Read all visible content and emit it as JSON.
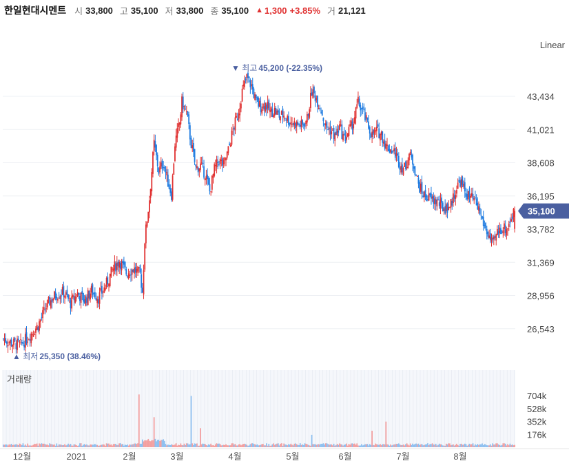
{
  "header": {
    "name": "한일현대시멘트",
    "open_label": "시",
    "open": "33,800",
    "high_label": "고",
    "high": "35,100",
    "low_label": "저",
    "low": "33,800",
    "close_label": "종",
    "close": "35,100",
    "change_icon": "triangle-up-icon",
    "change": "1,300",
    "change_pct": "+3.85%",
    "volume_label": "거",
    "volume": "21,121"
  },
  "scale_mode": "Linear",
  "colors": {
    "up": "#e03131",
    "down": "#1e7be0",
    "badge": "#4a5fa0",
    "grid": "#eef0f4"
  },
  "chart_data": {
    "type": "candlestick",
    "price_axis": {
      "ticks": [
        26543,
        28956,
        31369,
        33782,
        36195,
        38608,
        41021,
        43434
      ],
      "range": [
        25000,
        47500
      ],
      "grid": true,
      "side": "right"
    },
    "current_price_label": "35,100",
    "annotations": {
      "high": {
        "prefix": "최고",
        "text": "45,200 (-22.35%)",
        "price": 45200,
        "icon": "triangle-down-icon"
      },
      "low": {
        "prefix": "최저",
        "text": "25,350 (38.46%)",
        "price": 25350,
        "icon": "triangle-up-icon"
      }
    },
    "x_labels": [
      "12월",
      "2021",
      "2월",
      "3월",
      "4월",
      "5월",
      "6월",
      "7월",
      "8월"
    ],
    "volume": {
      "title": "거래량",
      "ticks": [
        "704k",
        "528k",
        "352k",
        "176k"
      ],
      "tick_values": [
        704000,
        528000,
        352000,
        176000
      ],
      "range": [
        0,
        920000
      ]
    },
    "close_path": [
      [
        0,
        25800
      ],
      [
        8,
        25500
      ],
      [
        15,
        25350
      ],
      [
        22,
        26000
      ],
      [
        30,
        26800
      ],
      [
        38,
        28300
      ],
      [
        45,
        29000
      ],
      [
        52,
        29200
      ],
      [
        58,
        28400
      ],
      [
        64,
        29100
      ],
      [
        70,
        28600
      ],
      [
        76,
        29300
      ],
      [
        82,
        28800
      ],
      [
        88,
        29600
      ],
      [
        94,
        30800
      ],
      [
        100,
        31500
      ],
      [
        106,
        30600
      ],
      [
        112,
        30900
      ],
      [
        118,
        30500
      ],
      [
        120,
        29200
      ],
      [
        122,
        33000
      ],
      [
        126,
        36000
      ],
      [
        130,
        40000
      ],
      [
        134,
        38000
      ],
      [
        138,
        38600
      ],
      [
        142,
        37200
      ],
      [
        145,
        36300
      ],
      [
        148,
        40000
      ],
      [
        152,
        41500
      ],
      [
        154,
        43000
      ],
      [
        158,
        42200
      ],
      [
        162,
        40000
      ],
      [
        166,
        38200
      ],
      [
        170,
        38400
      ],
      [
        174,
        37800
      ],
      [
        178,
        36500
      ],
      [
        182,
        38100
      ],
      [
        186,
        38800
      ],
      [
        190,
        38400
      ],
      [
        194,
        39500
      ],
      [
        198,
        41000
      ],
      [
        202,
        42000
      ],
      [
        206,
        43800
      ],
      [
        210,
        44800
      ],
      [
        214,
        44200
      ],
      [
        218,
        43000
      ],
      [
        222,
        42700
      ],
      [
        226,
        42900
      ],
      [
        230,
        42300
      ],
      [
        234,
        42400
      ],
      [
        238,
        42000
      ],
      [
        242,
        42100
      ],
      [
        246,
        41700
      ],
      [
        250,
        41500
      ],
      [
        254,
        41400
      ],
      [
        258,
        41300
      ],
      [
        262,
        41800
      ],
      [
        266,
        43800
      ],
      [
        270,
        43300
      ],
      [
        274,
        42500
      ],
      [
        278,
        41200
      ],
      [
        282,
        41000
      ],
      [
        286,
        40500
      ],
      [
        290,
        41200
      ],
      [
        294,
        40300
      ],
      [
        298,
        40900
      ],
      [
        302,
        41600
      ],
      [
        306,
        43000
      ],
      [
        310,
        42300
      ],
      [
        314,
        41400
      ],
      [
        318,
        40600
      ],
      [
        322,
        40900
      ],
      [
        326,
        40700
      ],
      [
        330,
        39800
      ],
      [
        334,
        39600
      ],
      [
        338,
        39300
      ],
      [
        342,
        38500
      ],
      [
        346,
        38200
      ],
      [
        350,
        39200
      ],
      [
        354,
        38500
      ],
      [
        358,
        37000
      ],
      [
        362,
        36300
      ],
      [
        366,
        36100
      ],
      [
        370,
        35900
      ],
      [
        374,
        35800
      ],
      [
        378,
        35400
      ],
      [
        382,
        35300
      ],
      [
        386,
        35600
      ],
      [
        390,
        36600
      ],
      [
        394,
        37300
      ],
      [
        398,
        36500
      ],
      [
        402,
        36100
      ],
      [
        406,
        35800
      ],
      [
        410,
        35200
      ],
      [
        414,
        34200
      ],
      [
        418,
        33400
      ],
      [
        422,
        32600
      ],
      [
        426,
        33500
      ],
      [
        430,
        33900
      ],
      [
        434,
        33800
      ],
      [
        438,
        34600
      ],
      [
        441,
        35100
      ]
    ]
  }
}
